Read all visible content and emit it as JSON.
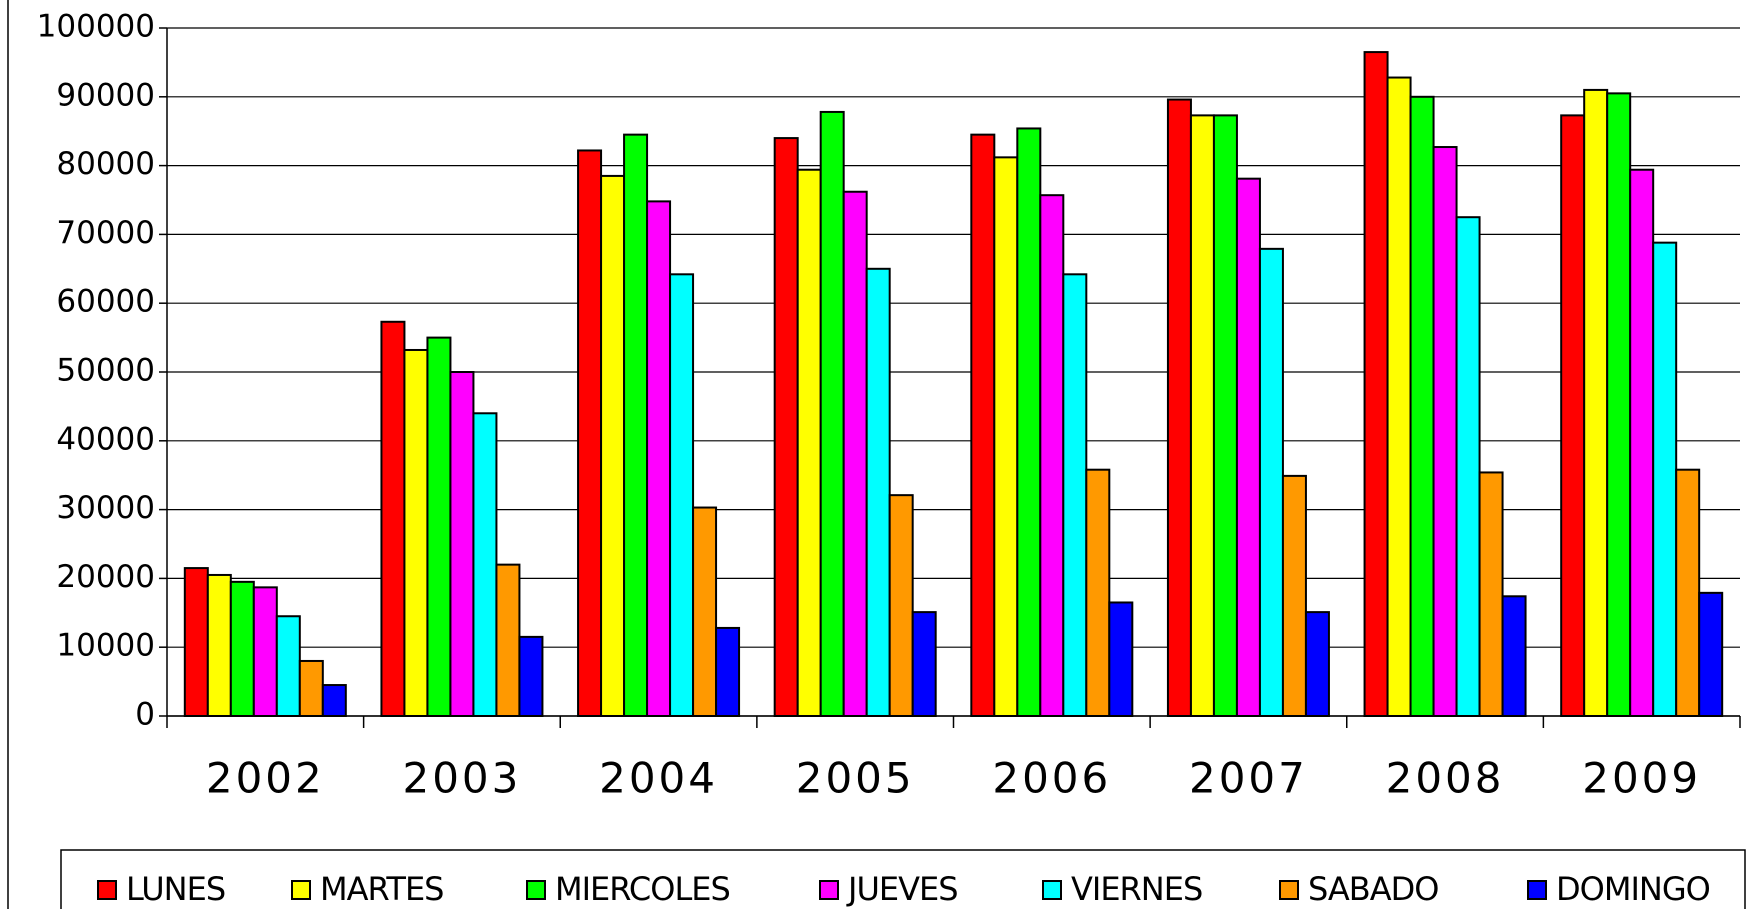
{
  "chart_data": {
    "type": "bar",
    "categories": [
      "2002",
      "2003",
      "2004",
      "2005",
      "2006",
      "2007",
      "2008",
      "2009"
    ],
    "series": [
      {
        "name": "LUNES",
        "color": "#ff0000",
        "values": [
          21500,
          57300,
          82200,
          84000,
          84500,
          89600,
          96500,
          87300
        ]
      },
      {
        "name": "MARTES",
        "color": "#ffff00",
        "values": [
          20500,
          53200,
          78500,
          79400,
          81200,
          87300,
          92800,
          91000
        ]
      },
      {
        "name": "MIERCOLES",
        "color": "#00ff00",
        "values": [
          19500,
          55000,
          84500,
          87800,
          85400,
          87300,
          90000,
          90500
        ]
      },
      {
        "name": "JUEVES",
        "color": "#ff00ff",
        "values": [
          18700,
          50000,
          74800,
          76200,
          75700,
          78100,
          82700,
          79400
        ]
      },
      {
        "name": "VIERNES",
        "color": "#00ffff",
        "values": [
          14500,
          44000,
          64200,
          65000,
          64200,
          67900,
          72500,
          68800
        ]
      },
      {
        "name": "SABADO",
        "color": "#ff9900",
        "values": [
          8000,
          22000,
          30300,
          32100,
          35800,
          34900,
          35400,
          35800
        ]
      },
      {
        "name": "DOMINGO",
        "color": "#0000ff",
        "values": [
          4500,
          11500,
          12800,
          15100,
          16500,
          15100,
          17400,
          17900
        ]
      }
    ],
    "ylim": [
      0,
      100000
    ],
    "yticks": [
      0,
      10000,
      20000,
      30000,
      40000,
      50000,
      60000,
      70000,
      80000,
      90000,
      100000
    ],
    "grid": true
  }
}
